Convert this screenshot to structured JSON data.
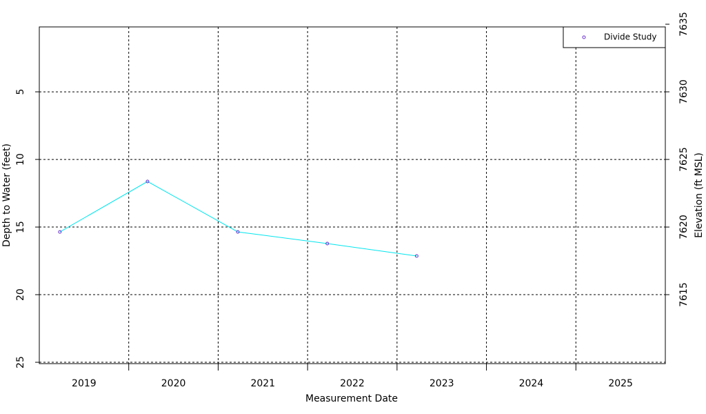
{
  "chart_data": {
    "type": "line",
    "xlabel": "Measurement Date",
    "ylabel": "Depth to Water (feet)",
    "y2label": "Elevation (ft MSL)",
    "xlim": [
      2019,
      2026
    ],
    "xticks": [
      {
        "value": 2019.5,
        "label": "2019"
      },
      {
        "value": 2020.5,
        "label": "2020"
      },
      {
        "value": 2021.5,
        "label": "2021"
      },
      {
        "value": 2022.5,
        "label": "2022"
      },
      {
        "value": 2023.5,
        "label": "2023"
      },
      {
        "value": 2024.5,
        "label": "2024"
      },
      {
        "value": 2025.5,
        "label": "2025"
      }
    ],
    "xgrid": [
      2020,
      2021,
      2022,
      2023,
      2024,
      2025
    ],
    "ylim": [
      25.1,
      0.2
    ],
    "yticks": [
      5,
      10,
      15,
      20,
      25
    ],
    "y2lim": [
      7609.9,
      7634.8
    ],
    "y2ticks": [
      7615,
      7620,
      7625,
      7630,
      7635
    ],
    "grid": true,
    "legend": "top-right",
    "x": [
      2019.23,
      2020.21,
      2021.22,
      2022.22,
      2023.22
    ],
    "series": [
      {
        "name": "Divide Study",
        "color": "#00e5ee",
        "marker_color": "#6a2fd0",
        "values": [
          15.36,
          11.63,
          15.36,
          16.22,
          17.14
        ]
      }
    ]
  }
}
